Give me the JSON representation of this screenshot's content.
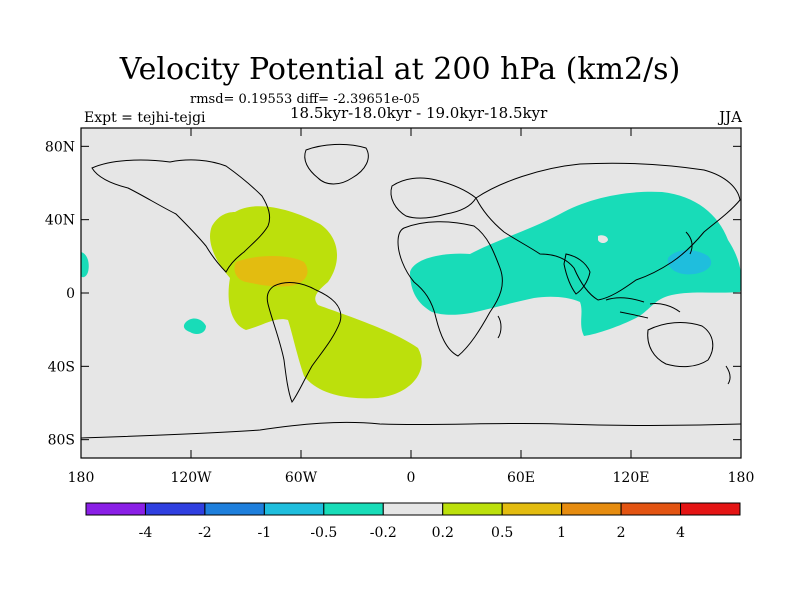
{
  "title": "Velocity Potential at 200 hPa (km2/s)",
  "stats_line": "rmsd= 0.19553 diff= -2.39651e-05",
  "experiment": "Expt = tejhi-tejgi",
  "period": "18.5kyr-18.0kyr - 19.0kyr-18.5kyr",
  "season": "JJA",
  "chart_data": {
    "type": "heatmap",
    "title": "Velocity Potential at 200 hPa (km2/s)",
    "units": "km2/s",
    "x_ticks": [
      "180",
      "120W",
      "60W",
      "0",
      "60E",
      "120E",
      "180"
    ],
    "x_tick_values": [
      -180,
      -120,
      -60,
      0,
      60,
      120,
      180
    ],
    "y_ticks": [
      "80N",
      "40N",
      "0",
      "40S",
      "80S"
    ],
    "y_tick_values": [
      80,
      40,
      0,
      -40,
      -80
    ],
    "xlim": [
      -180,
      180
    ],
    "ylim": [
      -90,
      90
    ],
    "colorbar": {
      "labels": [
        "-4",
        "-2",
        "-1",
        "-0.5",
        "-0.2",
        "0.2",
        "0.5",
        "1",
        "2",
        "4"
      ],
      "colors": [
        "#8a1fe6",
        "#2f3fe0",
        "#1e7fdc",
        "#1fbedd",
        "#18dcb8",
        "#e6e6e6",
        "#bce00c",
        "#e3bc10",
        "#e68c10",
        "#e35412",
        "#e41414"
      ]
    },
    "regions": [
      {
        "name": "americas-positive",
        "level": "0.2 to 0.5",
        "color": "#bce00c"
      },
      {
        "name": "caribbean-positive",
        "level": "0.5 to 1",
        "color": "#e3bc10"
      },
      {
        "name": "africa-asia-negative",
        "level": "-0.5 to -0.2",
        "color": "#18dcb8"
      },
      {
        "name": "west-pacific-negative",
        "level": "-1 to -0.5",
        "color": "#1fbedd"
      },
      {
        "name": "south-pacific-negative",
        "level": "-0.5 to -0.2",
        "color": "#18dcb8"
      },
      {
        "name": "east-pacific-negative",
        "level": "-0.5 to -0.2",
        "color": "#18dcb8"
      }
    ]
  }
}
